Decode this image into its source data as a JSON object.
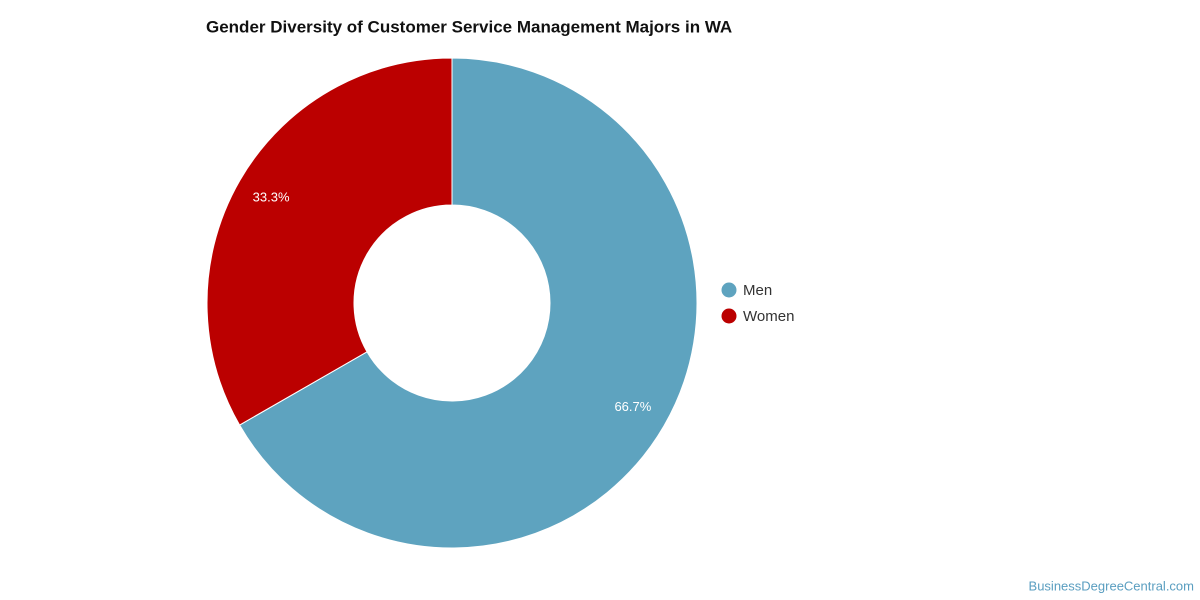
{
  "chart_data": {
    "type": "pie",
    "donut": true,
    "title": "Gender Diversity of Customer Service Management Majors in WA",
    "categories": [
      "Men",
      "Women"
    ],
    "values": [
      66.7,
      33.3
    ],
    "value_labels": [
      "66.7%",
      "33.3%"
    ],
    "colors": [
      "#5ea3bf",
      "#bb0000"
    ],
    "legend": "right",
    "source": "BusinessDegreeCentral.com"
  }
}
